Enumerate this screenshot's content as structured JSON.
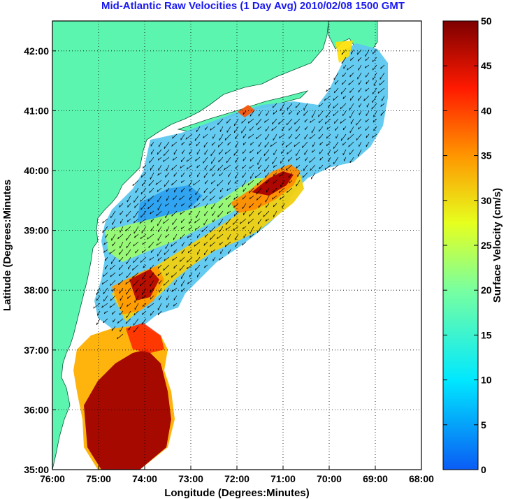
{
  "title": "Mid-Atlantic Raw Velocities (1 Day Avg) 2010/02/08 1500 GMT",
  "map": {
    "xlabel": "Longitude (Degrees:Minutes)",
    "ylabel": "Latitude (Degrees:Minutes",
    "lon_range": [
      -76,
      -68
    ],
    "lat_range": [
      35,
      42.5
    ],
    "x_ticks": [
      "76:00",
      "75:00",
      "74:00",
      "73:00",
      "72:00",
      "71:00",
      "70:00",
      "69:00",
      "68:00"
    ],
    "y_ticks": [
      "35:00",
      "36:00",
      "37:00",
      "38:00",
      "39:00",
      "40:00",
      "41:00",
      "42:00"
    ],
    "grid": true,
    "land_color": "#5cf5b0",
    "background_color": "#ffffff",
    "vector_color": "#000000"
  },
  "colorbar": {
    "label": "Surface Velocity (cm/s)",
    "min": 0,
    "max": 50,
    "ticks": [
      "0",
      "5",
      "10",
      "15",
      "20",
      "25",
      "30",
      "35",
      "40",
      "45",
      "50"
    ],
    "colormap": "jet"
  },
  "regions": {
    "label_note": ""
  }
}
